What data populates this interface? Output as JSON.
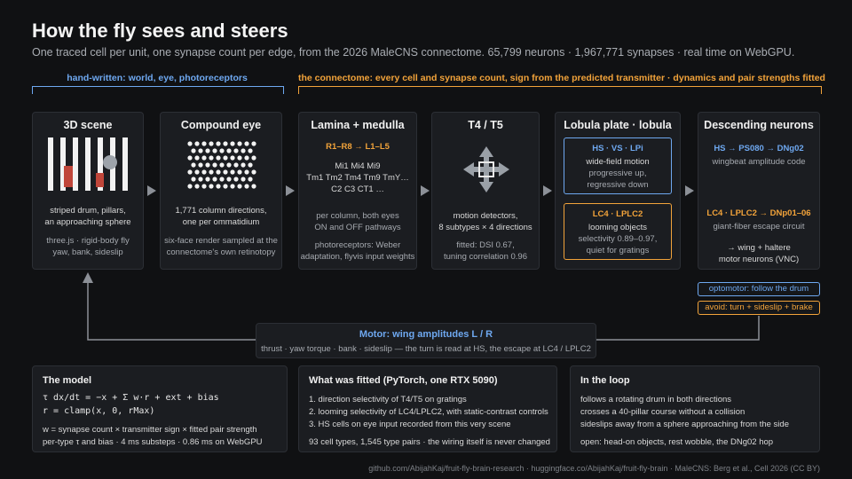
{
  "title": "How the fly sees and steers",
  "subtitle": "One traced cell per unit, one synapse count per edge, from the 2026 MaleCNS connectome. 65,799 neurons · 1,967,771 synapses · real time on WebGPU.",
  "brackets": {
    "left": "hand-written: world, eye, photoreceptors",
    "right": "the connectome: every cell and synapse count, sign from the predicted transmitter · dynamics and pair strengths fitted"
  },
  "colors": {
    "blue": "#6ea8f0",
    "orange": "#f2a33a",
    "card": "#1b1d21"
  },
  "cards": {
    "scene": {
      "title": "3D scene",
      "line1": "striped drum, pillars,",
      "line2": "an approaching sphere",
      "m1": "three.js · rigid-body fly",
      "m2": "yaw, bank, sideslip"
    },
    "eye": {
      "title": "Compound eye",
      "line1": "1,771 column directions,",
      "line2": "one per ommatidium",
      "m1": "six-face render sampled at the",
      "m2": "connectome's own retinotopy"
    },
    "lamina": {
      "title": "Lamina + medulla",
      "highlight": "R1–R8 → L1–L5",
      "cells1": "Mi1 Mi4 Mi9",
      "cells2": "Tm1 Tm2 Tm4 Tm9 TmY…",
      "cells3": "C2 C3 CT1 …",
      "m1": "per column, both eyes",
      "m2": "ON and OFF pathways",
      "m3": "photoreceptors: Weber",
      "m4": "adaptation, flyvis input weights"
    },
    "t4": {
      "title": "T4 / T5",
      "line1": "motion detectors,",
      "line2": "8 subtypes × 4 directions",
      "m1": "fitted: DSI 0.67,",
      "m2": "tuning correlation 0.96"
    },
    "lobula": {
      "title": "Lobula plate · lobula",
      "hs_title": "HS · VS · LPi",
      "hs_l1": "wide-field motion",
      "hs_l2": "progressive up,",
      "hs_l3": "regressive down",
      "lc_title": "LC4 · LPLC2",
      "lc_l1": "looming objects",
      "lc_l2": "selectivity 0.89–0.97,",
      "lc_l3": "quiet for gratings"
    },
    "descending": {
      "title": "Descending neurons",
      "h1": "HS → PS080 → DNg02",
      "l1": "wingbeat amplitude code",
      "h2": "LC4 · LPLC2 → DNp01–06",
      "l2": "giant-fiber escape circuit",
      "l3": "→ wing + haltere",
      "l4": "motor neurons (VNC)"
    }
  },
  "tags": {
    "optomotor": "optomotor: follow the drum",
    "avoid": "avoid: turn + sideslip + brake"
  },
  "motor": {
    "title": "Motor: wing amplitudes L / R",
    "desc": "thrust · yaw torque · bank · sideslip — the turn is read at HS, the escape at LC4 / LPLC2"
  },
  "panels": {
    "model": {
      "title": "The model",
      "eq1": "τ dx/dt = −x + Σ w·r + ext + bias",
      "eq2": "r = clamp(x, 0, rMax)",
      "l1": "w = synapse count × transmitter sign × fitted pair strength",
      "l2": "per-type τ and bias · 4 ms substeps · 0.86 ms on WebGPU"
    },
    "fitted": {
      "title": "What was fitted (PyTorch, one RTX 5090)",
      "l1": "1. direction selectivity of T4/T5 on gratings",
      "l2": "2. looming selectivity of LC4/LPLC2, with static-contrast controls",
      "l3": "3. HS cells on eye input recorded from this very scene",
      "l4": "93 cell types, 1,545 type pairs · the wiring itself is never changed"
    },
    "loop": {
      "title": "In the loop",
      "l1": "follows a rotating drum in both directions",
      "l2": "crosses a 40-pillar course without a collision",
      "l3": "sideslips away from a sphere approaching from the side",
      "l4": "open: head-on objects, rest wobble, the DNg02 hop"
    }
  },
  "footer": "github.com/AbijahKaj/fruit-fly-brain-research · huggingface.co/AbijahKaj/fruit-fly-brain · MaleCNS: Berg et al., Cell 2026 (CC BY)"
}
